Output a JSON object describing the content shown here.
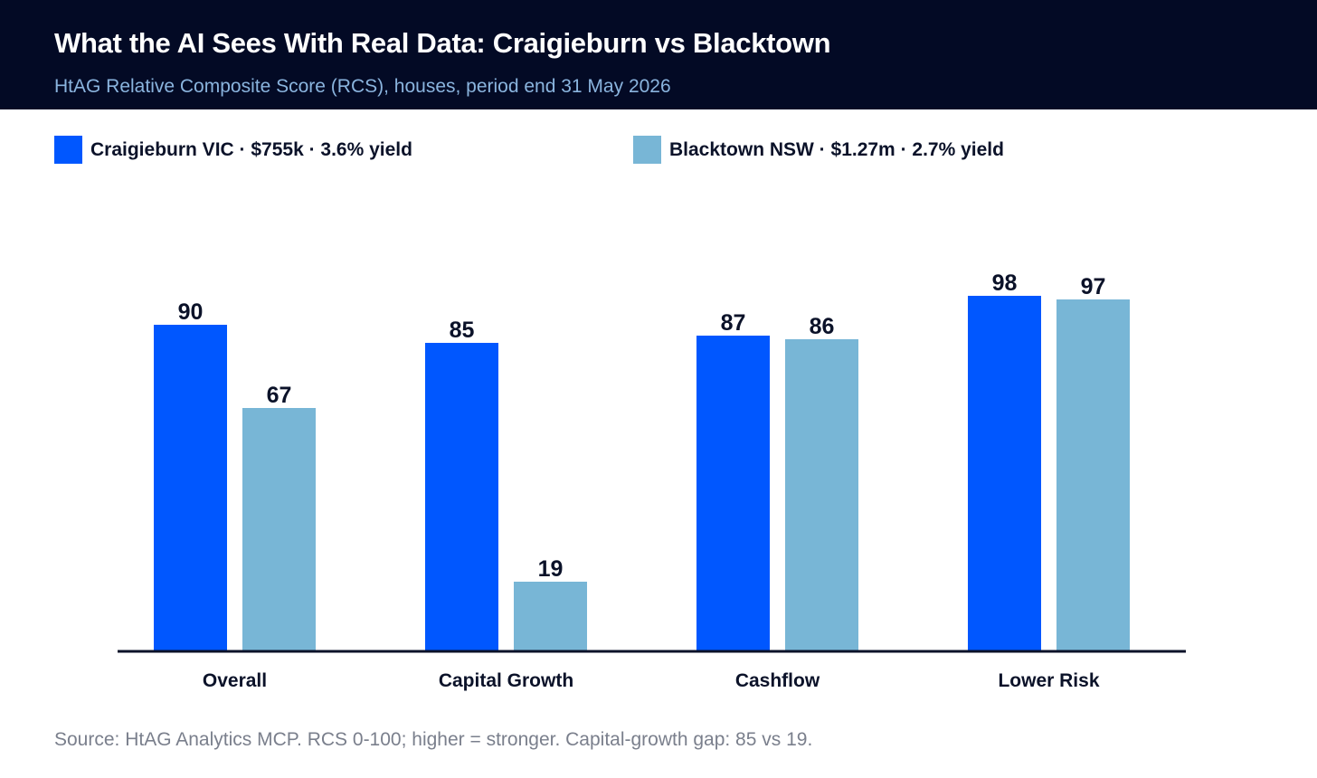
{
  "header": {
    "title": "What the AI Sees With Real Data: Craigieburn vs Blacktown",
    "subtitle": "HtAG Relative Composite Score (RCS), houses, period end 31 May 2026"
  },
  "legend": [
    {
      "label": "Craigieburn VIC  ·  $755k  ·  3.6% yield",
      "color": "#0057ff"
    },
    {
      "label": "Blacktown NSW  ·  $1.27m  ·  2.7% yield",
      "color": "#78b6d6"
    }
  ],
  "chart_data": {
    "type": "bar",
    "categories": [
      "Overall",
      "Capital Growth",
      "Cashflow",
      "Lower Risk"
    ],
    "series": [
      {
        "name": "Craigieburn VIC",
        "values": [
          90,
          85,
          87,
          98
        ],
        "color": "#0057ff"
      },
      {
        "name": "Blacktown NSW",
        "values": [
          67,
          19,
          86,
          97
        ],
        "color": "#78b6d6"
      }
    ],
    "ylim": [
      0,
      100
    ],
    "grid": false,
    "legend_position": "top-left",
    "data_labels": true
  },
  "footer": {
    "source": "Source: HtAG Analytics MCP. RCS 0-100; higher = stronger. Capital-growth gap: 85 vs 19."
  }
}
